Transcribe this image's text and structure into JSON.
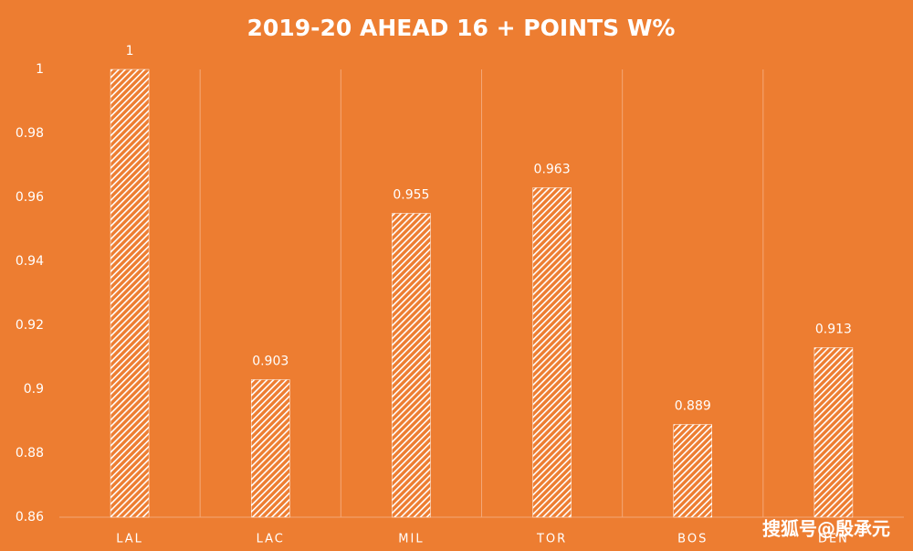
{
  "chart_data": {
    "type": "bar",
    "title": "2019-20 AHEAD 16 + POINTS  W%",
    "categories": [
      "LAL",
      "LAC",
      "MIL",
      "TOR",
      "BOS",
      "DEN"
    ],
    "values": [
      1,
      0.903,
      0.955,
      0.963,
      0.889,
      0.913
    ],
    "color": "#ffffff",
    "ylim": [
      0.86,
      1
    ],
    "yticks": [
      0.86,
      0.88,
      0.9,
      0.92,
      0.94,
      0.96,
      0.98,
      1
    ],
    "grid": false,
    "watermark": "搜狐号@殷承元"
  }
}
